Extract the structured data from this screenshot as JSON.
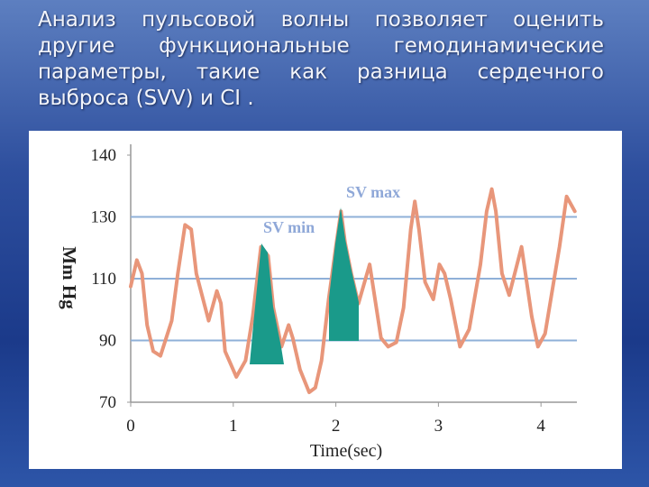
{
  "slide": {
    "text_lines": [
      "Анализ пульсовой волны позволяет оценить",
      "другие функциональные гемодинамические",
      "параметры, такие как разница сердечного",
      "выброса (SVV) и CI ."
    ]
  },
  "chart_data": {
    "type": "line",
    "x_label": "Time(sec)",
    "y_label": "Mm Hg",
    "annotations": [
      "SV max",
      "SV min"
    ],
    "color": "#e8967a",
    "x": [
      0,
      0.06,
      0.11,
      0.16,
      0.22,
      0.29,
      0.4,
      0.46,
      0.53,
      0.59,
      0.64,
      0.76,
      0.84,
      0.88,
      0.92,
      1.03,
      1.12,
      1.19,
      1.27,
      1.34,
      1.39,
      1.47,
      1.54,
      1.58,
      1.65,
      1.74,
      1.8,
      1.86,
      1.93,
      2.0,
      2.05,
      2.09,
      2.15,
      2.22,
      2.33,
      2.44,
      2.51,
      2.59,
      2.66,
      2.73,
      2.77,
      2.81,
      2.87,
      2.95,
      3.01,
      3.06,
      3.12,
      3.21,
      3.3,
      3.41,
      3.47,
      3.52,
      3.56,
      3.62,
      3.69,
      3.81,
      3.91,
      3.97,
      4.04,
      4.18,
      4.25,
      4.33
    ],
    "values": [
      107.5,
      116,
      111.7,
      95,
      86.5,
      85,
      96.4,
      111.7,
      127.4,
      126,
      111.7,
      96.4,
      106,
      102,
      86.5,
      78.2,
      83.5,
      97.8,
      120.3,
      117.4,
      100.6,
      88,
      95,
      90.8,
      80.6,
      73.2,
      74.7,
      83.5,
      103.3,
      120.3,
      130.9,
      121.7,
      111.7,
      101.9,
      114.6,
      90.8,
      88,
      89.4,
      100.6,
      126,
      132.5,
      126,
      108.9,
      103.3,
      114.6,
      111.7,
      103.3,
      88,
      93.6,
      114.6,
      130.9,
      134.5,
      130.9,
      111.7,
      104.7,
      120.3,
      97.8,
      88,
      92.2,
      120.3,
      133.3,
      130.9
    ],
    "xlim": [
      0,
      4.35
    ],
    "xticks": [
      0,
      1,
      2,
      3,
      4
    ],
    "ylim": [
      70,
      140
    ],
    "yticks": [
      140,
      130,
      110,
      90,
      70
    ],
    "grid": true
  }
}
